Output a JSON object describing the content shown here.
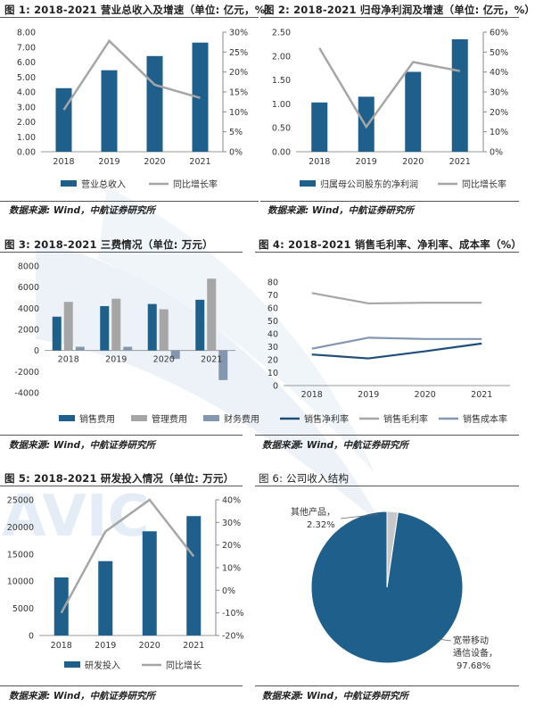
{
  "figures": [
    {
      "title": "图 1: 2018-2021 营业总收入及增速（单位: 亿元，%）",
      "source": "数据来源: Wind，中航证券研究所"
    },
    {
      "title": "图 2: 2018-2021 归母净利润及增速（单位: 亿元，%）",
      "source": "数据来源: Wind，中航证券研究所"
    },
    {
      "title": "图 3: 2018-2021 三费情况（单位: 万元）",
      "source": "数据来源: Wind，中航证券研究所"
    },
    {
      "title": "图 4: 2018-2021 销售毛利率、净利率、成本率（%）",
      "source": "数据来源: Wind，中航证券研究所"
    },
    {
      "title": "图 5: 2018-2021 研发投入情况（单位: 万元）",
      "source": "数据来源: Wind，中航证券研究所"
    },
    {
      "title": "图 6: 公司收入结构",
      "source": "数据来源: Wind，中航证券研究所"
    }
  ],
  "watermark": "AVIC",
  "chart_data": [
    {
      "type": "bar",
      "categories": [
        "2018",
        "2019",
        "2020",
        "2021"
      ],
      "series": [
        {
          "name": "营业总收入",
          "type": "bar",
          "axis": "left",
          "values": [
            4.25,
            5.45,
            6.4,
            7.3
          ],
          "color": "#1f5f8b"
        },
        {
          "name": "同比增长率",
          "type": "line",
          "axis": "right",
          "values": [
            10.5,
            27.8,
            16.8,
            13.5
          ],
          "color": "#a6a6a6"
        }
      ],
      "y_left": {
        "min": 0,
        "max": 8,
        "step": 1,
        "ticks": [
          "0.00",
          "1.00",
          "2.00",
          "3.00",
          "4.00",
          "5.00",
          "6.00",
          "7.00",
          "8.00"
        ]
      },
      "y_right": {
        "min": 0,
        "max": 30,
        "step": 5,
        "ticks": [
          "0%",
          "5%",
          "10%",
          "15%",
          "20%",
          "25%",
          "30%"
        ]
      }
    },
    {
      "type": "bar",
      "categories": [
        "2018",
        "2019",
        "2020",
        "2021"
      ],
      "series": [
        {
          "name": "归属母公司股东的净利润",
          "type": "bar",
          "axis": "left",
          "values": [
            1.03,
            1.15,
            1.67,
            2.35
          ],
          "color": "#1f5f8b"
        },
        {
          "name": "同比增长率",
          "type": "line",
          "axis": "right",
          "values": [
            52,
            12.5,
            45,
            40.5
          ],
          "color": "#a6a6a6"
        }
      ],
      "y_left": {
        "min": 0,
        "max": 2.5,
        "step": 0.5,
        "ticks": [
          "0.00",
          "0.50",
          "1.00",
          "1.50",
          "2.00",
          "2.50"
        ]
      },
      "y_right": {
        "min": 0,
        "max": 60,
        "step": 10,
        "ticks": [
          "0%",
          "10%",
          "20%",
          "30%",
          "40%",
          "50%",
          "60%"
        ]
      }
    },
    {
      "type": "bar",
      "categories": [
        "2018",
        "2019",
        "2020",
        "2021"
      ],
      "series": [
        {
          "name": "销售费用",
          "values": [
            3200,
            4200,
            4400,
            4800
          ],
          "color": "#1f5f8b"
        },
        {
          "name": "管理费用",
          "values": [
            4600,
            4900,
            3900,
            6800
          ],
          "color": "#a6a6a6"
        },
        {
          "name": "财务费用",
          "values": [
            350,
            350,
            -800,
            -2800
          ],
          "color": "#8497b0"
        }
      ],
      "y": {
        "min": -4000,
        "max": 8000,
        "step": 2000,
        "ticks": [
          "-4000",
          "-2000",
          "0",
          "2000",
          "4000",
          "6000",
          "8000"
        ]
      }
    },
    {
      "type": "line",
      "categories": [
        "2018",
        "2019",
        "2020",
        "2021"
      ],
      "series": [
        {
          "name": "销售净利率",
          "values": [
            24,
            21,
            26.5,
            32.5
          ],
          "color": "#1f4e79"
        },
        {
          "name": "销售毛利率",
          "values": [
            71.5,
            63.5,
            64,
            64
          ],
          "color": "#a6a6a6"
        },
        {
          "name": "销售成本率",
          "values": [
            28.5,
            37,
            36,
            36
          ],
          "color": "#8497b0"
        }
      ],
      "y": {
        "min": 0,
        "max": 80,
        "step": 10,
        "ticks": [
          "0",
          "10",
          "20",
          "30",
          "40",
          "50",
          "60",
          "70",
          "80"
        ]
      }
    },
    {
      "type": "bar",
      "categories": [
        "2018",
        "2019",
        "2020",
        "2021"
      ],
      "series": [
        {
          "name": "研发投入",
          "type": "bar",
          "axis": "left",
          "values": [
            10700,
            13700,
            19200,
            22000
          ],
          "color": "#1f5f8b"
        },
        {
          "name": "同比增长",
          "type": "line",
          "axis": "right",
          "values": [
            -10,
            26,
            40,
            15
          ],
          "color": "#a6a6a6"
        }
      ],
      "y_left": {
        "min": 0,
        "max": 25000,
        "step": 5000,
        "ticks": [
          "0",
          "5000",
          "10000",
          "15000",
          "20000",
          "25000"
        ]
      },
      "y_right": {
        "min": -20,
        "max": 40,
        "step": 10,
        "ticks": [
          "-20%",
          "-10%",
          "0%",
          "10%",
          "20%",
          "30%",
          "40%"
        ]
      }
    },
    {
      "type": "pie",
      "slices": [
        {
          "label": "宽带移动通信设备，97.68%",
          "value": 97.68,
          "color": "#1f5f8b"
        },
        {
          "label": "其他产品，2.32%",
          "value": 2.32,
          "color": "#c8c8c8"
        }
      ]
    }
  ]
}
